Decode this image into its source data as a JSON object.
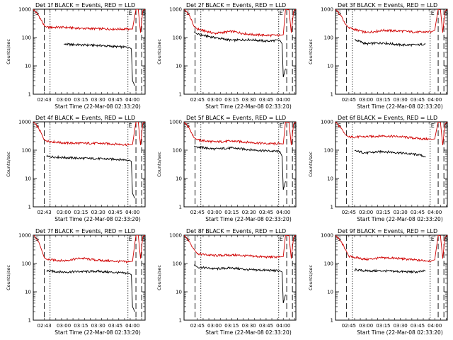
{
  "figure": {
    "start_time_label": "Start Time (22-Mar-08 02:33:20)",
    "ylabel": "Counts/sec",
    "colors": {
      "events": "#000000",
      "lld": "#d00000"
    }
  },
  "chart_data": [
    {
      "type": "line",
      "detector": "1f",
      "title": "Det 1f BLACK = Events, RED = LLD",
      "xlabel": "Start Time (22-Mar-08 02:33:20)",
      "ylabel": "Counts/sec",
      "y_scale": "log",
      "ylim": [
        1,
        1000
      ],
      "yticks": [
        "1",
        "10",
        "100",
        "1000"
      ],
      "xticks": [
        "02:43",
        "03:00",
        "03:15",
        "03:30",
        "03:45",
        "04:00"
      ],
      "xlim": [
        "02:33:20",
        "04:11:00"
      ],
      "markers": [
        "S",
        "E",
        "S"
      ],
      "series": [
        {
          "name": "LLD",
          "color": "red",
          "x": [
            "02:33:20",
            "02:38",
            "02:43",
            "02:45",
            "03:00",
            "03:15",
            "03:30",
            "03:45",
            "03:57",
            "04:00",
            "04:03",
            "04:05",
            "04:07",
            "04:09",
            "04:11"
          ],
          "y": [
            1000,
            600,
            260,
            230,
            230,
            210,
            205,
            200,
            200,
            200,
            1000,
            1000,
            150,
            900,
            1000
          ]
        },
        {
          "name": "Events",
          "color": "black",
          "x": [
            "03:00",
            "03:15",
            "03:30",
            "03:45",
            "03:57",
            "03:59",
            "04:00",
            "04:02"
          ],
          "y": [
            58,
            55,
            53,
            48,
            45,
            40,
            3,
            2
          ]
        }
      ]
    },
    {
      "type": "line",
      "detector": "2f",
      "title": "Det 2f BLACK = Events, RED = LLD",
      "xlabel": "Start Time (22-Mar-08 02:33:20)",
      "ylabel": "Counts/sec",
      "y_scale": "log",
      "ylim": [
        1,
        1000
      ],
      "yticks": [
        "1",
        "10",
        "100",
        "1000"
      ],
      "xticks": [
        "02:45",
        "03:00",
        "03:15",
        "03:30",
        "03:45",
        "04:00"
      ],
      "xlim": [
        "02:33:20",
        "04:11:00"
      ],
      "markers": [
        "S",
        "E",
        "S"
      ],
      "series": [
        {
          "name": "LLD",
          "color": "red",
          "x": [
            "02:33:20",
            "02:38",
            "02:42",
            "02:45",
            "03:00",
            "03:15",
            "03:30",
            "03:45",
            "03:57",
            "04:00",
            "04:02",
            "04:05",
            "04:07",
            "04:09",
            "04:11"
          ],
          "y": [
            1000,
            600,
            250,
            200,
            140,
            165,
            130,
            120,
            120,
            125,
            1000,
            950,
            150,
            850,
            1000
          ]
        },
        {
          "name": "Events",
          "color": "black",
          "x": [
            "02:42",
            "02:45",
            "03:00",
            "03:15",
            "03:30",
            "03:45",
            "03:57",
            "03:59",
            "04:00",
            "04:02"
          ],
          "y": [
            160,
            130,
            100,
            80,
            85,
            75,
            80,
            60,
            4,
            8
          ]
        }
      ]
    },
    {
      "type": "line",
      "detector": "3f",
      "title": "Det 3f BLACK = Events, RED = LLD",
      "xlabel": "Start Time (22-Mar-08 02:33:20)",
      "ylabel": "Counts/sec",
      "y_scale": "log",
      "ylim": [
        1,
        1000
      ],
      "yticks": [
        "1",
        "10",
        "100",
        "1000"
      ],
      "xticks": [
        "02:45",
        "03:00",
        "03:15",
        "03:30",
        "03:45",
        "04:00"
      ],
      "xlim": [
        "02:33:20",
        "04:11:00"
      ],
      "markers": [
        "S",
        "E",
        "S"
      ],
      "series": [
        {
          "name": "LLD",
          "color": "red",
          "x": [
            "02:33:20",
            "02:38",
            "02:42",
            "02:45",
            "03:00",
            "03:15",
            "03:30",
            "03:45",
            "03:57",
            "04:00",
            "04:03",
            "04:05",
            "04:07",
            "04:09",
            "04:11"
          ],
          "y": [
            1000,
            600,
            300,
            220,
            150,
            180,
            170,
            155,
            160,
            180,
            1000,
            950,
            150,
            850,
            1000
          ]
        },
        {
          "name": "Events",
          "color": "black",
          "x": [
            "02:50",
            "03:00",
            "03:15",
            "03:30",
            "03:45",
            "03:52"
          ],
          "y": [
            85,
            60,
            65,
            55,
            55,
            60
          ]
        }
      ]
    },
    {
      "type": "line",
      "detector": "4f",
      "title": "Det 4f BLACK = Events, RED = LLD",
      "xlabel": "Start Time (22-Mar-08 02:33:20)",
      "ylabel": "Counts/sec",
      "y_scale": "log",
      "ylim": [
        1,
        1000
      ],
      "yticks": [
        "1",
        "10",
        "100",
        "1000"
      ],
      "xticks": [
        "02:43",
        "03:00",
        "03:15",
        "03:30",
        "03:45",
        "04:00"
      ],
      "xlim": [
        "02:33:20",
        "04:11:00"
      ],
      "markers": [
        "S",
        "E",
        "S"
      ],
      "series": [
        {
          "name": "LLD",
          "color": "red",
          "x": [
            "02:33:20",
            "02:38",
            "02:43",
            "02:45",
            "03:00",
            "03:15",
            "03:30",
            "03:45",
            "03:57",
            "04:00",
            "04:03",
            "04:05",
            "04:07",
            "04:09",
            "04:11"
          ],
          "y": [
            1000,
            600,
            230,
            210,
            180,
            175,
            175,
            165,
            155,
            160,
            1000,
            1000,
            150,
            900,
            1000
          ]
        },
        {
          "name": "Events",
          "color": "black",
          "x": [
            "02:45",
            "03:00",
            "03:15",
            "03:30",
            "03:45",
            "03:57",
            "03:59",
            "04:00",
            "04:02"
          ],
          "y": [
            60,
            55,
            52,
            50,
            48,
            45,
            40,
            3,
            2
          ]
        }
      ]
    },
    {
      "type": "line",
      "detector": "5f",
      "title": "Det 5f BLACK = Events, RED = LLD",
      "xlabel": "Start Time (22-Mar-08 02:33:20)",
      "ylabel": "Counts/sec",
      "y_scale": "log",
      "ylim": [
        1,
        1000
      ],
      "yticks": [
        "1",
        "10",
        "100",
        "1000"
      ],
      "xticks": [
        "02:45",
        "03:00",
        "03:15",
        "03:30",
        "03:45",
        "04:00"
      ],
      "xlim": [
        "02:33:20",
        "04:11:00"
      ],
      "markers": [
        "S",
        "E",
        "S"
      ],
      "series": [
        {
          "name": "LLD",
          "color": "red",
          "x": [
            "02:33:20",
            "02:38",
            "02:42",
            "02:45",
            "03:00",
            "03:15",
            "03:30",
            "03:45",
            "03:57",
            "04:00",
            "04:02",
            "04:05",
            "04:07",
            "04:09",
            "04:11"
          ],
          "y": [
            1000,
            600,
            280,
            230,
            195,
            210,
            190,
            170,
            170,
            165,
            1000,
            950,
            150,
            850,
            1000
          ]
        },
        {
          "name": "Events",
          "color": "black",
          "x": [
            "02:42",
            "02:45",
            "03:00",
            "03:15",
            "03:30",
            "03:45",
            "03:57",
            "03:59",
            "04:00",
            "04:02"
          ],
          "y": [
            140,
            130,
            110,
            120,
            105,
            95,
            90,
            60,
            4,
            8
          ]
        }
      ]
    },
    {
      "type": "line",
      "detector": "6f",
      "title": "Det 6f BLACK = Events, RED = LLD",
      "xlabel": "Start Time (22-Mar-08 02:33:20)",
      "ylabel": "Counts/sec",
      "y_scale": "log",
      "ylim": [
        1,
        1000
      ],
      "yticks": [
        "1",
        "10",
        "100",
        "1000"
      ],
      "xticks": [
        "02:45",
        "03:00",
        "03:15",
        "03:30",
        "03:45",
        "04:00"
      ],
      "xlim": [
        "02:33:20",
        "04:11:00"
      ],
      "markers": [
        "S",
        "E",
        "S"
      ],
      "series": [
        {
          "name": "LLD",
          "color": "red",
          "x": [
            "02:33:20",
            "02:38",
            "02:42",
            "02:45",
            "03:00",
            "03:15",
            "03:30",
            "03:45",
            "03:57",
            "04:00",
            "04:03",
            "04:05",
            "04:07",
            "04:09",
            "04:11"
          ],
          "y": [
            1000,
            600,
            350,
            290,
            300,
            320,
            300,
            260,
            240,
            250,
            1000,
            950,
            150,
            850,
            1000
          ]
        },
        {
          "name": "Events",
          "color": "black",
          "x": [
            "02:50",
            "03:00",
            "03:15",
            "03:30",
            "03:45",
            "03:52"
          ],
          "y": [
            95,
            80,
            90,
            80,
            70,
            60
          ]
        }
      ]
    },
    {
      "type": "line",
      "detector": "7f",
      "title": "Det 7f BLACK = Events, RED = LLD",
      "xlabel": "Start Time (22-Mar-08 02:33:20)",
      "ylabel": "Counts/sec",
      "y_scale": "log",
      "ylim": [
        1,
        1000
      ],
      "yticks": [
        "1",
        "10",
        "100",
        "1000"
      ],
      "xticks": [
        "02:43",
        "03:00",
        "03:15",
        "03:30",
        "03:45",
        "04:00"
      ],
      "xlim": [
        "02:33:20",
        "04:11:00"
      ],
      "markers": [
        "S",
        "E",
        "S"
      ],
      "series": [
        {
          "name": "LLD",
          "color": "red",
          "x": [
            "02:33:20",
            "02:38",
            "02:43",
            "02:45",
            "03:00",
            "03:15",
            "03:30",
            "03:45",
            "03:57",
            "04:00",
            "04:03",
            "04:05",
            "04:07",
            "04:09",
            "04:11"
          ],
          "y": [
            1000,
            600,
            160,
            140,
            125,
            155,
            130,
            120,
            115,
            120,
            1000,
            1000,
            150,
            900,
            1000
          ]
        },
        {
          "name": "Events",
          "color": "black",
          "x": [
            "02:45",
            "03:00",
            "03:15",
            "03:30",
            "03:45",
            "03:57",
            "03:59",
            "04:00",
            "04:02"
          ],
          "y": [
            55,
            50,
            52,
            53,
            48,
            45,
            40,
            3,
            2
          ]
        }
      ]
    },
    {
      "type": "line",
      "detector": "8f",
      "title": "Det 8f BLACK = Events, RED = LLD",
      "xlabel": "Start Time (22-Mar-08 02:33:20)",
      "ylabel": "Counts/sec",
      "y_scale": "log",
      "ylim": [
        1,
        1000
      ],
      "yticks": [
        "1",
        "10",
        "100",
        "1000"
      ],
      "xticks": [
        "02:45",
        "03:00",
        "03:15",
        "03:30",
        "03:45",
        "04:00"
      ],
      "xlim": [
        "02:33:20",
        "04:11:00"
      ],
      "markers": [
        "S",
        "E",
        "S"
      ],
      "series": [
        {
          "name": "LLD",
          "color": "red",
          "x": [
            "02:33:20",
            "02:38",
            "02:42",
            "02:45",
            "03:00",
            "03:15",
            "03:30",
            "03:45",
            "03:57",
            "04:00",
            "04:02",
            "04:05",
            "04:07",
            "04:09",
            "04:11"
          ],
          "y": [
            1000,
            600,
            320,
            220,
            190,
            200,
            185,
            170,
            170,
            175,
            1000,
            950,
            150,
            850,
            1000
          ]
        },
        {
          "name": "Events",
          "color": "black",
          "x": [
            "02:42",
            "02:45",
            "03:00",
            "03:15",
            "03:30",
            "03:45",
            "03:57",
            "03:59",
            "04:00",
            "04:02"
          ],
          "y": [
            90,
            75,
            65,
            70,
            60,
            58,
            55,
            50,
            4,
            8
          ]
        }
      ]
    },
    {
      "type": "line",
      "detector": "9f",
      "title": "Det 9f BLACK = Events, RED = LLD",
      "xlabel": "Start Time (22-Mar-08 02:33:20)",
      "ylabel": "Counts/sec",
      "y_scale": "log",
      "ylim": [
        1,
        1000
      ],
      "yticks": [
        "1",
        "10",
        "100",
        "1000"
      ],
      "xticks": [
        "02:45",
        "03:00",
        "03:15",
        "03:30",
        "03:45",
        "04:00"
      ],
      "xlim": [
        "02:33:20",
        "04:11:00"
      ],
      "markers": [
        "S",
        "E",
        "S"
      ],
      "series": [
        {
          "name": "LLD",
          "color": "red",
          "x": [
            "02:33:20",
            "02:38",
            "02:42",
            "02:45",
            "03:00",
            "03:15",
            "03:30",
            "03:45",
            "03:57",
            "04:00",
            "04:03",
            "04:05",
            "04:07",
            "04:09",
            "04:11"
          ],
          "y": [
            1000,
            600,
            320,
            180,
            140,
            160,
            150,
            130,
            125,
            135,
            1000,
            950,
            150,
            850,
            1000
          ]
        },
        {
          "name": "Events",
          "color": "black",
          "x": [
            "02:50",
            "03:00",
            "03:15",
            "03:30",
            "03:45",
            "03:52"
          ],
          "y": [
            60,
            55,
            55,
            52,
            50,
            55
          ]
        }
      ]
    }
  ]
}
